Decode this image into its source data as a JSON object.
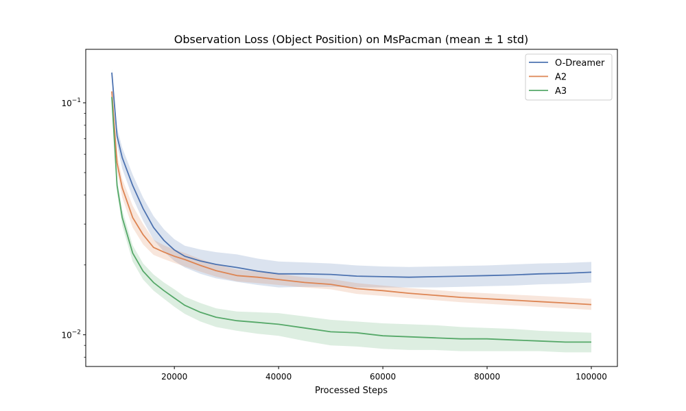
{
  "chart_data": {
    "type": "line",
    "title": "Observation Loss (Object Position) on MsPacman (mean ± 1 std)",
    "xlabel": "Processed Steps",
    "ylabel": "",
    "xlim": [
      3000,
      105000
    ],
    "ylim": [
      0.0073,
      0.17
    ],
    "yscale": "log",
    "grid": false,
    "legend_position": "top-right",
    "x_ticks": [
      20000,
      40000,
      60000,
      80000,
      100000
    ],
    "y_ticks": [
      {
        "value": 0.1,
        "base": "10",
        "exp": "−1"
      },
      {
        "value": 0.01,
        "base": "10",
        "exp": "−2"
      }
    ],
    "x": [
      8000,
      9000,
      10000,
      12000,
      14000,
      16000,
      18000,
      20000,
      22000,
      25000,
      28000,
      32000,
      36000,
      40000,
      45000,
      50000,
      55000,
      60000,
      65000,
      70000,
      75000,
      80000,
      85000,
      90000,
      95000,
      100000
    ],
    "series": [
      {
        "name": "O-Dreamer",
        "color": "#4c72b0",
        "values": [
          0.135,
          0.072,
          0.058,
          0.044,
          0.035,
          0.029,
          0.0255,
          0.0232,
          0.0218,
          0.0208,
          0.0201,
          0.0195,
          0.0188,
          0.0183,
          0.0183,
          0.0182,
          0.0179,
          0.0178,
          0.0177,
          0.0178,
          0.0179,
          0.018,
          0.0181,
          0.0183,
          0.0184,
          0.0186
        ],
        "std_low": [
          0.13,
          0.066,
          0.052,
          0.039,
          0.031,
          0.0257,
          0.0228,
          0.0208,
          0.0195,
          0.0183,
          0.0175,
          0.0169,
          0.0164,
          0.016,
          0.0161,
          0.0161,
          0.016,
          0.016,
          0.016,
          0.016,
          0.0161,
          0.0162,
          0.0163,
          0.0165,
          0.0166,
          0.0168
        ],
        "std_high": [
          0.14,
          0.078,
          0.064,
          0.049,
          0.039,
          0.0325,
          0.0285,
          0.0258,
          0.0242,
          0.0233,
          0.0227,
          0.0222,
          0.0213,
          0.0207,
          0.0205,
          0.0203,
          0.0199,
          0.0197,
          0.0196,
          0.0197,
          0.0198,
          0.0199,
          0.0201,
          0.0203,
          0.0204,
          0.0206
        ]
      },
      {
        "name": "A2",
        "color": "#dd8452",
        "values": [
          0.112,
          0.055,
          0.043,
          0.032,
          0.027,
          0.0238,
          0.0227,
          0.0218,
          0.0211,
          0.0199,
          0.0189,
          0.018,
          0.0177,
          0.0173,
          0.0168,
          0.0165,
          0.0158,
          0.0155,
          0.0151,
          0.0148,
          0.0145,
          0.0143,
          0.0141,
          0.0139,
          0.0137,
          0.0135
        ],
        "std_low": [
          0.108,
          0.051,
          0.039,
          0.029,
          0.0245,
          0.0221,
          0.0212,
          0.0204,
          0.0197,
          0.0187,
          0.0178,
          0.017,
          0.0167,
          0.0164,
          0.016,
          0.0157,
          0.015,
          0.0147,
          0.0144,
          0.0141,
          0.0138,
          0.0136,
          0.0134,
          0.0132,
          0.013,
          0.0128
        ],
        "std_high": [
          0.117,
          0.06,
          0.047,
          0.036,
          0.03,
          0.0257,
          0.0243,
          0.0233,
          0.0225,
          0.0212,
          0.0201,
          0.0191,
          0.0187,
          0.0183,
          0.0177,
          0.0174,
          0.0167,
          0.0163,
          0.0159,
          0.0156,
          0.0153,
          0.0151,
          0.0149,
          0.0147,
          0.0145,
          0.0143
        ]
      },
      {
        "name": "A3",
        "color": "#55a868",
        "values": [
          0.106,
          0.044,
          0.032,
          0.0225,
          0.0188,
          0.0168,
          0.0155,
          0.0144,
          0.0134,
          0.0125,
          0.0119,
          0.0115,
          0.0113,
          0.0111,
          0.0107,
          0.0103,
          0.0102,
          0.0099,
          0.0098,
          0.0097,
          0.0096,
          0.0096,
          0.0095,
          0.0094,
          0.0093,
          0.0093
        ],
        "std_low": [
          0.102,
          0.041,
          0.0295,
          0.0207,
          0.0173,
          0.0155,
          0.0143,
          0.0132,
          0.0123,
          0.0114,
          0.0108,
          0.0104,
          0.0101,
          0.0099,
          0.0094,
          0.009,
          0.0089,
          0.0087,
          0.0086,
          0.0086,
          0.0085,
          0.0085,
          0.0085,
          0.0085,
          0.0084,
          0.0084
        ],
        "std_high": [
          0.11,
          0.047,
          0.0345,
          0.0243,
          0.0203,
          0.0182,
          0.0168,
          0.0157,
          0.0146,
          0.0137,
          0.013,
          0.0126,
          0.0125,
          0.0124,
          0.012,
          0.0116,
          0.0114,
          0.0112,
          0.0111,
          0.011,
          0.0108,
          0.0107,
          0.0106,
          0.0104,
          0.0103,
          0.0102
        ]
      }
    ]
  }
}
